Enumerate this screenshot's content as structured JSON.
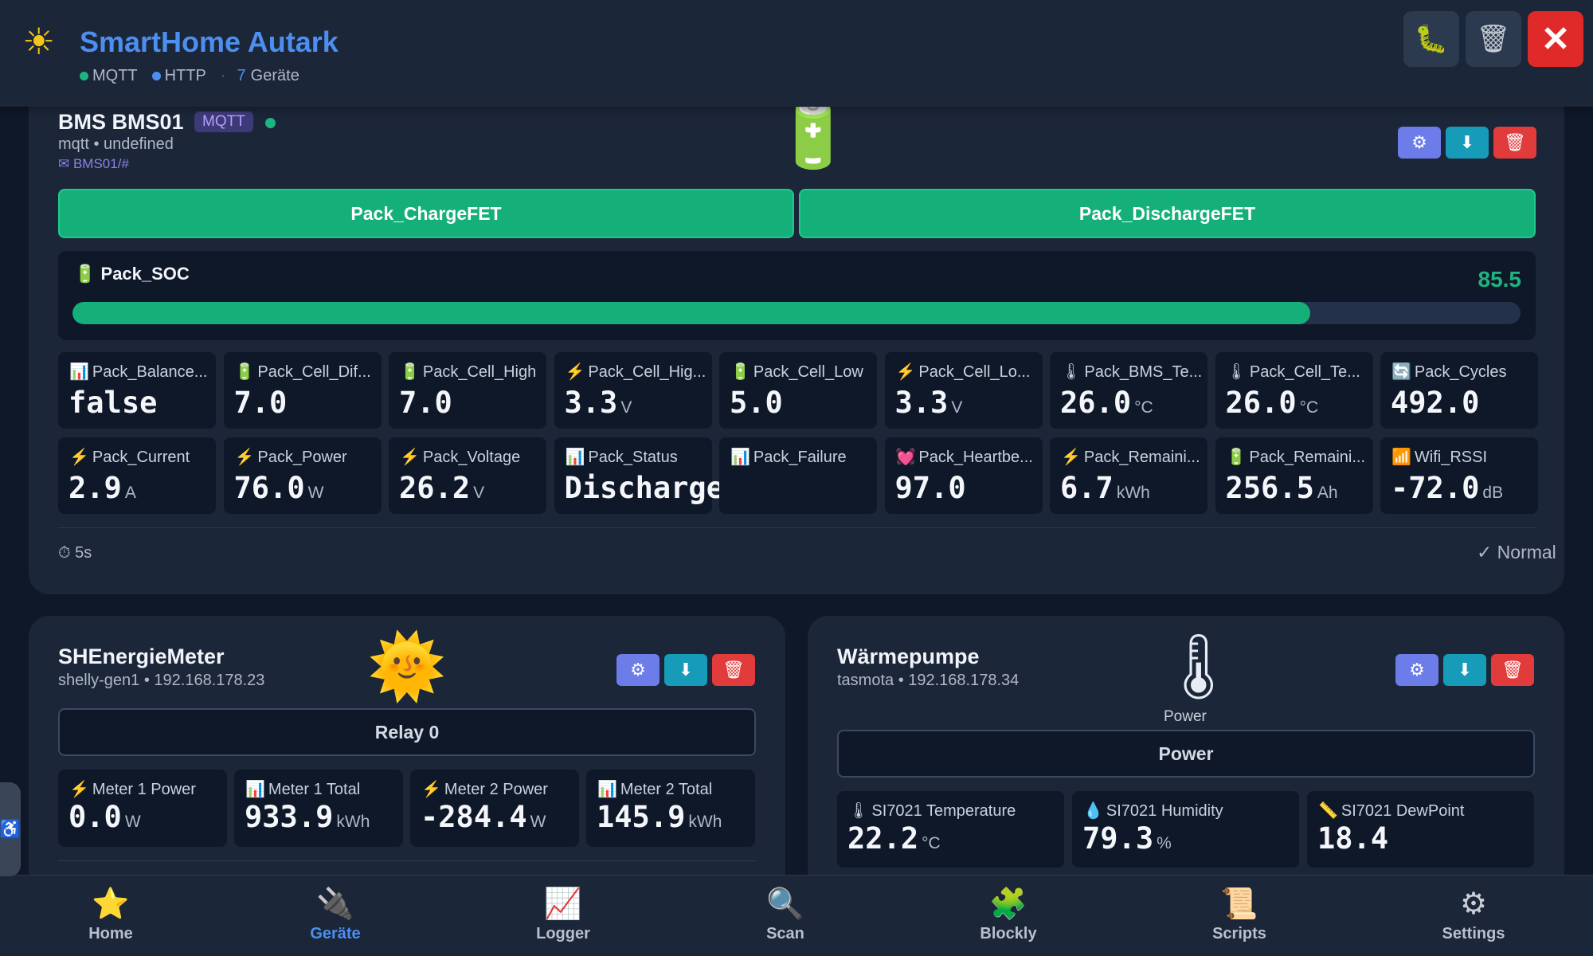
{
  "header": {
    "title": "SmartHome Autark",
    "conn_mqtt": "MQTT",
    "conn_http": "HTTP",
    "device_count": "7",
    "device_label": "Geräte",
    "colors": {
      "mqtt_dot": "#1db47f",
      "http_dot": "#4d8ff0"
    }
  },
  "bms": {
    "name": "BMS BMS01",
    "badge": "MQTT",
    "sub": "mqtt • undefined",
    "topic": "BMS01/#",
    "btn_charge": "Pack_ChargeFET",
    "btn_discharge": "Pack_DischargeFET",
    "soc": {
      "label": "Pack_SOC",
      "value": "85.5",
      "fill_percent": 85.5
    },
    "tiles": [
      {
        "icon": "📊",
        "label": "Pack_Balance...",
        "value": "false",
        "unit": ""
      },
      {
        "icon": "🔋",
        "label": "Pack_Cell_Dif...",
        "value": "7.0",
        "unit": ""
      },
      {
        "icon": "🔋",
        "label": "Pack_Cell_High",
        "value": "7.0",
        "unit": ""
      },
      {
        "icon": "⚡",
        "label": "Pack_Cell_Hig...",
        "value": "3.3",
        "unit": "V"
      },
      {
        "icon": "🔋",
        "label": "Pack_Cell_Low",
        "value": "5.0",
        "unit": ""
      },
      {
        "icon": "⚡",
        "label": "Pack_Cell_Lo...",
        "value": "3.3",
        "unit": "V"
      },
      {
        "icon": "🌡",
        "label": "Pack_BMS_Te...",
        "value": "26.0",
        "unit": "°C"
      },
      {
        "icon": "🌡",
        "label": "Pack_Cell_Te...",
        "value": "26.0",
        "unit": "°C"
      },
      {
        "icon": "🔄",
        "label": "Pack_Cycles",
        "value": "492.0",
        "unit": ""
      },
      {
        "icon": "⚡",
        "label": "Pack_Current",
        "value": "2.9",
        "unit": "A"
      },
      {
        "icon": "⚡",
        "label": "Pack_Power",
        "value": "76.0",
        "unit": "W"
      },
      {
        "icon": "⚡",
        "label": "Pack_Voltage",
        "value": "26.2",
        "unit": "V"
      },
      {
        "icon": "📊",
        "label": "Pack_Status",
        "value": "Discharge",
        "unit": ""
      },
      {
        "icon": "📊",
        "label": "Pack_Failure",
        "value": "",
        "unit": ""
      },
      {
        "icon": "💓",
        "label": "Pack_Heartbe...",
        "value": "97.0",
        "unit": ""
      },
      {
        "icon": "⚡",
        "label": "Pack_Remaini...",
        "value": "6.7",
        "unit": "kWh"
      },
      {
        "icon": "🔋",
        "label": "Pack_Remaini...",
        "value": "256.5",
        "unit": "Ah"
      },
      {
        "icon": "📶",
        "label": "Wifi_RSSI",
        "value": "-72.0",
        "unit": "dB"
      }
    ],
    "footer_interval": "5s",
    "footer_mode": "Normal"
  },
  "meter": {
    "name": "SHEnergieMeter",
    "sub": "shelly-gen1 • 192.168.178.23",
    "relay_label": "Relay 0",
    "tiles": [
      {
        "icon": "⚡",
        "label": "Meter 1 Power",
        "value": "0.0",
        "unit": "W"
      },
      {
        "icon": "📊",
        "label": "Meter 1 Total",
        "value": "933.9",
        "unit": "kWh"
      },
      {
        "icon": "⚡",
        "label": "Meter 2 Power",
        "value": "-284.4",
        "unit": "W"
      },
      {
        "icon": "📊",
        "label": "Meter 2 Total",
        "value": "145.9",
        "unit": "kWh"
      }
    ]
  },
  "heat": {
    "name": "Wärmepumpe",
    "sub": "tasmota • 192.168.178.34",
    "img_caption": "Power",
    "power_label": "Power",
    "tiles": [
      {
        "icon": "🌡",
        "label": "SI7021 Temperature",
        "value": "22.2",
        "unit": "°C"
      },
      {
        "icon": "💧",
        "label": "SI7021 Humidity",
        "value": "79.3",
        "unit": "%"
      },
      {
        "icon": "📏",
        "label": "SI7021 DewPoint",
        "value": "18.4",
        "unit": ""
      }
    ]
  },
  "nav": [
    {
      "icon": "⭐",
      "label": "Home"
    },
    {
      "icon": "🔌",
      "label": "Geräte"
    },
    {
      "icon": "📈",
      "label": "Logger"
    },
    {
      "icon": "🔍",
      "label": "Scan"
    },
    {
      "icon": "🧩",
      "label": "Blockly"
    },
    {
      "icon": "📜",
      "label": "Scripts"
    },
    {
      "icon": "⚙",
      "label": "Settings"
    }
  ]
}
